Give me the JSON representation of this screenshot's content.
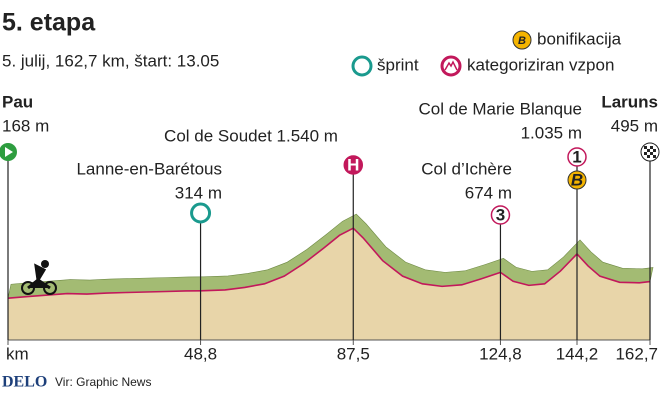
{
  "title": "5. etapa",
  "subtitle": "5. julij, 162,7 km, štart: 13.05",
  "legend": {
    "bonus": "bonifikacija",
    "bonus_icon": "B",
    "sprint": "šprint",
    "climb": "kategoriziran vzpon"
  },
  "footer": {
    "brand": "DELO",
    "source": "Vir: Graphic News"
  },
  "chart_data": {
    "type": "area",
    "x": [
      0,
      5,
      10,
      15,
      20,
      25,
      30,
      35,
      40,
      45,
      48.8,
      55,
      60,
      65,
      70,
      75,
      80,
      84,
      87.5,
      90,
      95,
      100,
      105,
      110,
      115,
      120,
      124.8,
      128,
      132,
      136,
      140,
      144.2,
      147,
      150,
      155,
      160,
      162.7
    ],
    "values": [
      168,
      200,
      230,
      260,
      250,
      270,
      280,
      290,
      300,
      310,
      314,
      330,
      380,
      450,
      600,
      850,
      1150,
      1400,
      1540,
      1350,
      900,
      600,
      450,
      400,
      430,
      550,
      674,
      500,
      420,
      450,
      700,
      1035,
      800,
      600,
      480,
      470,
      495
    ],
    "xlim": [
      0,
      162.7
    ],
    "ylim": [
      -650,
      1700
    ],
    "xticks": [
      {
        "value": 0,
        "label": "km"
      },
      {
        "value": 48.8,
        "label": "48,8"
      },
      {
        "value": 87.5,
        "label": "87,5"
      },
      {
        "value": 124.8,
        "label": "124,8"
      },
      {
        "value": 144.2,
        "label": "144,2"
      },
      {
        "value": 162.7,
        "label": "162,7"
      }
    ],
    "color": "#a3bb73",
    "fill": "#e8d5a9",
    "line_color": "#c2185b",
    "annotations": [
      {
        "x": 0,
        "lines": [
          "Pau",
          "168 m"
        ],
        "icon": "start"
      },
      {
        "x": 48.8,
        "lines": [
          "Lanne-en-Barétous",
          "314 m"
        ],
        "icon": "sprint"
      },
      {
        "x": 87.5,
        "lines": [
          "Col de Soudet 1.540 m"
        ],
        "icon": "climb",
        "icon_text": "H"
      },
      {
        "x": 124.8,
        "lines": [
          "Col d’Ichère",
          "674 m"
        ],
        "icon": "climb",
        "icon_text": "3"
      },
      {
        "x": 144.2,
        "lines": [
          "Col de Marie Blanque",
          "1.035 m"
        ],
        "icon": "climb",
        "icon_text": "1",
        "bonus_text": "B"
      },
      {
        "x": 162.7,
        "lines": [
          "Laruns",
          "495 m"
        ],
        "icon": "finish"
      }
    ]
  }
}
